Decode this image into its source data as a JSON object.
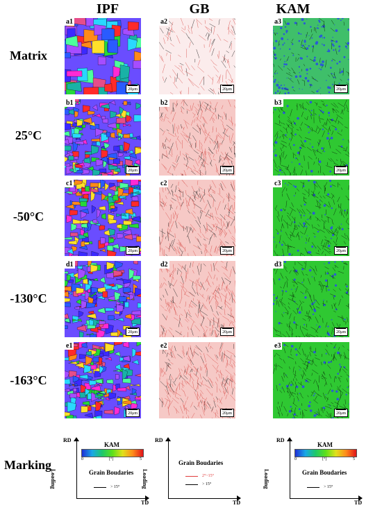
{
  "columns": [
    "IPF",
    "GB",
    "KAM"
  ],
  "rows": [
    {
      "label": "Matrix",
      "panels": [
        "a1",
        "a2",
        "a3"
      ]
    },
    {
      "label": "25°C",
      "panels": [
        "b1",
        "b2",
        "b3"
      ]
    },
    {
      "label": "-50°C",
      "panels": [
        "c1",
        "c2",
        "c3"
      ]
    },
    {
      "label": "-130°C",
      "panels": [
        "d1",
        "d2",
        "d3"
      ]
    },
    {
      "label": "-163°C",
      "panels": [
        "e1",
        "e2",
        "e3"
      ]
    }
  ],
  "scale_bar": "20μm",
  "marking": {
    "label": "Marking",
    "axis_rd": "RD",
    "axis_td": "TD",
    "axis_loading": "Loading",
    "kam_title": "KAM",
    "kam_min": "0",
    "kam_mid": "[°]",
    "kam_max": "5",
    "gb_title": "Grain Boudaries",
    "gb_low": "2°~15°",
    "gb_high": "> 15°"
  }
}
